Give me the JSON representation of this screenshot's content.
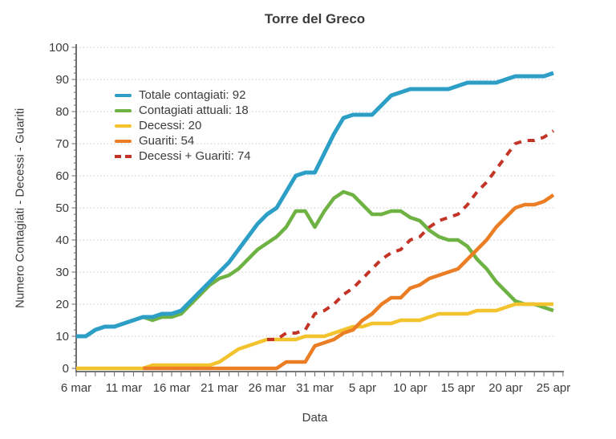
{
  "chart_data": {
    "type": "line",
    "title": "Torre del Greco",
    "xlabel": "Data",
    "ylabel": "Numero Contagiati - Decessi - Guariti",
    "ylim": [
      0,
      100
    ],
    "grid": "horizontal-dotted",
    "legend_position": "upper-left-inside",
    "y_tick_labels": [
      "0",
      "10",
      "20",
      "30",
      "40",
      "50",
      "60",
      "70",
      "80",
      "90",
      "100"
    ],
    "x_ticklabels": [
      "6 mar",
      "11 mar",
      "16 mar",
      "21 mar",
      "26 mar",
      "31 mar",
      "5 apr",
      "10 apr",
      "15 apr",
      "20 apr",
      "25 apr"
    ],
    "x_days_per_tick": 5,
    "legend": [
      {
        "text": "Totale contagiati: 92"
      },
      {
        "text": "Contagiati attuali: 18"
      },
      {
        "text": "Decessi: 20"
      },
      {
        "text": "Guariti: 54"
      },
      {
        "text": "Decessi + Guariti: 74"
      }
    ],
    "series": [
      {
        "name": "Totale contagiati",
        "final_value": 92,
        "color": "#2d9fc7",
        "style": "solid",
        "values": [
          10,
          10,
          12,
          13,
          13,
          14,
          15,
          16,
          16,
          17,
          17,
          18,
          21,
          24,
          27,
          30,
          33,
          37,
          41,
          45,
          48,
          50,
          55,
          60,
          61,
          61,
          67,
          73,
          78,
          79,
          79,
          79,
          82,
          85,
          86,
          87,
          87,
          87,
          87,
          87,
          88,
          89,
          89,
          89,
          89,
          90,
          91,
          91,
          91,
          91,
          92
        ]
      },
      {
        "name": "Contagiati attuali",
        "final_value": 18,
        "color": "#6fb244",
        "style": "solid",
        "values": [
          10,
          10,
          12,
          13,
          13,
          14,
          15,
          16,
          15,
          16,
          16,
          17,
          20,
          23,
          26,
          28,
          29,
          31,
          34,
          37,
          39,
          41,
          44,
          49,
          49,
          44,
          49,
          53,
          55,
          54,
          51,
          48,
          48,
          49,
          49,
          47,
          46,
          43,
          41,
          40,
          40,
          38,
          34,
          31,
          27,
          24,
          21,
          20,
          20,
          19,
          18
        ]
      },
      {
        "name": "Decessi",
        "final_value": 20,
        "color": "#f3c32e",
        "style": "solid",
        "values": [
          0,
          0,
          0,
          0,
          0,
          0,
          0,
          0,
          1,
          1,
          1,
          1,
          1,
          1,
          1,
          2,
          4,
          6,
          7,
          8,
          9,
          9,
          9,
          9,
          10,
          10,
          10,
          11,
          12,
          13,
          13,
          14,
          14,
          14,
          15,
          15,
          15,
          16,
          17,
          17,
          17,
          17,
          18,
          18,
          18,
          19,
          20,
          20,
          20,
          20,
          20
        ]
      },
      {
        "name": "Guariti",
        "final_value": 54,
        "color": "#eb7d24",
        "style": "solid",
        "values": [
          null,
          null,
          null,
          null,
          null,
          null,
          null,
          0,
          0,
          0,
          0,
          0,
          0,
          0,
          0,
          0,
          0,
          0,
          0,
          0,
          0,
          0,
          2,
          2,
          2,
          7,
          8,
          9,
          11,
          12,
          15,
          17,
          20,
          22,
          22,
          25,
          26,
          28,
          29,
          30,
          31,
          34,
          37,
          40,
          44,
          47,
          50,
          51,
          51,
          52,
          54
        ]
      },
      {
        "name": "Decessi + Guariti",
        "final_value": 74,
        "color": "#c43426",
        "style": "dashed",
        "values": [
          null,
          null,
          null,
          null,
          null,
          null,
          null,
          null,
          null,
          null,
          null,
          null,
          null,
          null,
          null,
          null,
          null,
          null,
          null,
          null,
          9,
          9,
          11,
          11,
          12,
          17,
          18,
          20,
          23,
          25,
          28,
          31,
          34,
          36,
          37,
          40,
          41,
          44,
          46,
          47,
          48,
          51,
          55,
          58,
          62,
          66,
          70,
          71,
          71,
          72,
          74
        ]
      }
    ]
  }
}
